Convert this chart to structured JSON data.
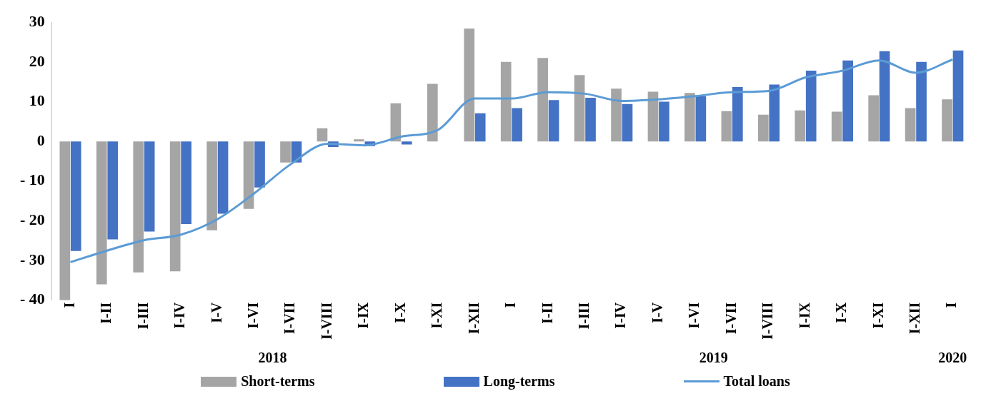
{
  "chart_data": {
    "type": "bar",
    "categories": [
      "I",
      "I-II",
      "I-III",
      "I-IV",
      "I-V",
      "I-VI",
      "I-VII",
      "I-VIII",
      "I-IX",
      "I-X",
      "I-XI",
      "I-XII",
      "I",
      "I-II",
      "I-III",
      "I-IV",
      "I-V",
      "I-VI",
      "I-VII",
      "I-VIII",
      "I-IX",
      "I-X",
      "I-XI",
      "I-XII",
      "I"
    ],
    "series": [
      {
        "name": "Short-terms",
        "color": "#a5a5a5",
        "values": [
          -40,
          -36,
          -33,
          -32.7,
          -22.4,
          -17,
          -5.3,
          3.3,
          0.5,
          9.6,
          14.5,
          28.4,
          20,
          21,
          16.7,
          13.3,
          12.5,
          12.2,
          7.6,
          6.7,
          7.8,
          7.5,
          11.6,
          8.4,
          10.6
        ]
      },
      {
        "name": "Long-terms",
        "color": "#4472c4",
        "values": [
          -27.6,
          -24.7,
          -22.7,
          -20.8,
          -18.2,
          -11.6,
          -5.3,
          -1.4,
          -1.2,
          -0.8,
          null,
          7.1,
          8.4,
          10.4,
          11,
          9.4,
          10,
          11.4,
          13.7,
          14.3,
          17.8,
          20.4,
          22.7,
          20,
          22.9
        ]
      },
      {
        "name": "Total loans",
        "type": "line",
        "color": "#5b9bd5",
        "values": [
          -30.4,
          -27.5,
          -24.9,
          -23.5,
          -19.6,
          -13.1,
          -5.7,
          -0.6,
          -1,
          1.2,
          2.9,
          10.8,
          10.8,
          12.4,
          12,
          10.2,
          10.6,
          11.4,
          12.4,
          12.7,
          16.1,
          17.8,
          20.4,
          17.3,
          20.6
        ]
      }
    ],
    "ylim": [
      -40,
      30
    ],
    "yticks": [
      {
        "value": -40,
        "label": "- 40"
      },
      {
        "value": -30,
        "label": "- 30"
      },
      {
        "value": -20,
        "label": "- 20"
      },
      {
        "value": -10,
        "label": "- 10"
      },
      0,
      10,
      20,
      30
    ],
    "annotations": [
      "2018",
      "2019",
      "2020"
    ],
    "legend": "bottom",
    "grid": false,
    "marker": "none"
  }
}
